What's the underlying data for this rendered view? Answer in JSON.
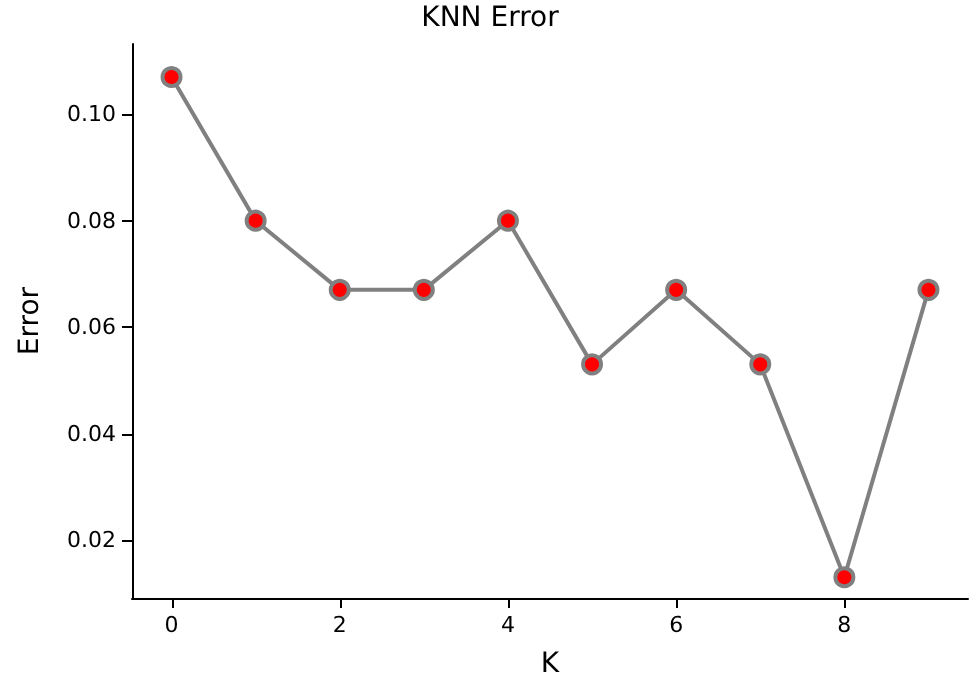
{
  "chart_data": {
    "type": "line",
    "title": "KNN Error",
    "xlabel": "K",
    "ylabel": "Error",
    "x": [
      0,
      1,
      2,
      3,
      4,
      5,
      6,
      7,
      8,
      9
    ],
    "series": [
      {
        "color": "#808080",
        "colors": [
          "#ff0000",
          "#ff0000",
          "#ff0000",
          "#ff0000",
          "#ff0000",
          "#ff0000",
          "#ff0000",
          "#ff0000",
          "#ff0000",
          "#ff0000"
        ],
        "values": [
          0.107,
          0.08,
          0.067,
          0.067,
          0.08,
          0.053,
          0.067,
          0.053,
          0.013,
          0.067
        ]
      }
    ],
    "marker": "circle",
    "line_style": "solid",
    "grid": false,
    "xlim": [
      -0.47,
      9.47
    ],
    "xticks": [
      0,
      2,
      4,
      6,
      8
    ],
    "ylim": [
      0.0091,
      0.1132
    ],
    "yticks": [
      0.02,
      0.04,
      0.06,
      0.08,
      {
        "value": 0.1,
        "label": "0.10"
      }
    ]
  }
}
